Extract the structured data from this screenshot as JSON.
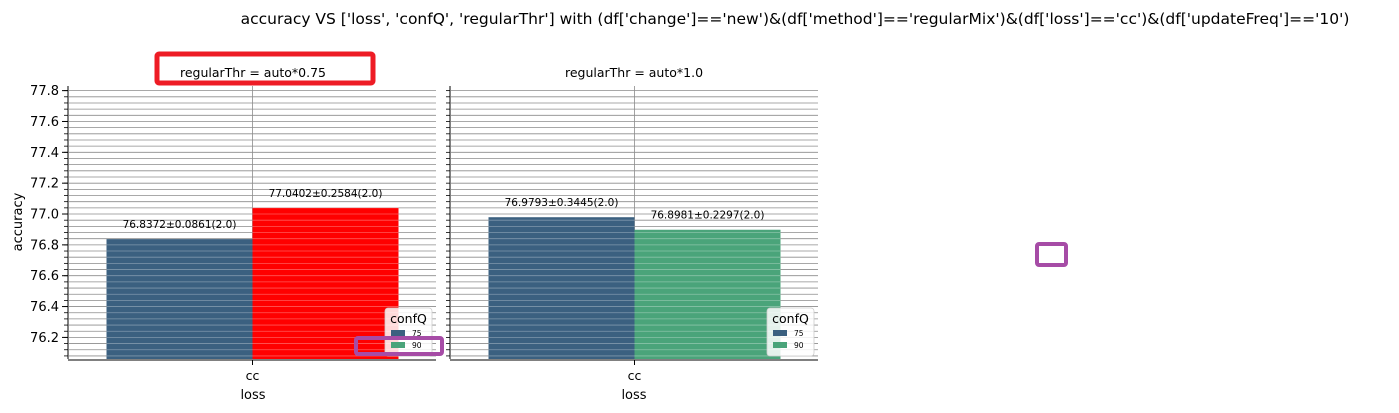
{
  "figure": {
    "title": "accuracy VS ['loss', 'confQ', 'regularThr'] with (df['change']=='new')&(df['method']=='regularMix')&(df['loss']=='cc')&(df['updateFreq']=='10')"
  },
  "chart_data": [
    {
      "type": "bar",
      "title": "regularThr = auto*0.75",
      "xlabel": "loss",
      "ylabel": "accuracy",
      "categories": [
        "cc"
      ],
      "ylim": [
        76.06,
        77.83
      ],
      "yticks": [
        "76.2",
        "76.4",
        "76.6",
        "76.8",
        "77.0",
        "77.2",
        "77.4",
        "77.6",
        "77.8"
      ],
      "grid": true,
      "series": [
        {
          "name": "75",
          "values": [
            76.8372
          ],
          "label": "76.8372±0.0861(2.0)",
          "color": "#3b6080"
        },
        {
          "name": "90",
          "values": [
            77.0402
          ],
          "label": "77.0402±0.2584(2.0)",
          "color": "#ff0000"
        }
      ],
      "legend": {
        "title": "confQ",
        "entries": [
          "75",
          "90"
        ],
        "colors": [
          "#3b6080",
          "#4aa47a"
        ],
        "placement": "lower-right"
      }
    },
    {
      "type": "bar",
      "title": "regularThr = auto*1.0",
      "xlabel": "loss",
      "ylabel": "",
      "categories": [
        "cc"
      ],
      "ylim": [
        76.06,
        77.83
      ],
      "grid": true,
      "series": [
        {
          "name": "75",
          "values": [
            76.9793
          ],
          "label": "76.9793±0.3445(2.0)",
          "color": "#3b6080"
        },
        {
          "name": "90",
          "values": [
            76.8981
          ],
          "label": "76.8981±0.2297(2.0)",
          "color": "#4aa47a"
        }
      ],
      "legend": {
        "title": "confQ",
        "entries": [
          "75",
          "90"
        ],
        "colors": [
          "#3b6080",
          "#4aa47a"
        ],
        "placement": "lower-right"
      }
    }
  ],
  "annotations": {
    "highlight_color": "#ee1c25",
    "marker_color": "#a64ca6"
  }
}
